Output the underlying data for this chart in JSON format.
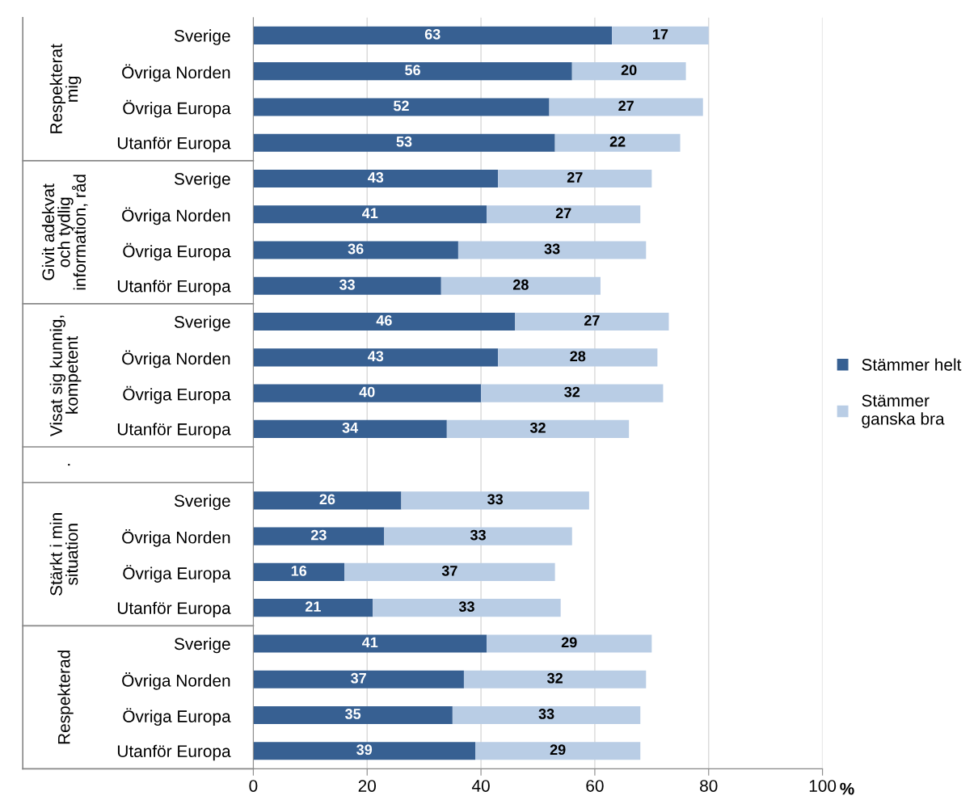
{
  "chart_data": {
    "type": "bar",
    "orientation": "horizontal",
    "stacked": true,
    "data_labels": true,
    "grid": "x",
    "legend": "right",
    "xlabel": "%",
    "categories": [
      "Sverige",
      "Övriga Norden",
      "Övriga Europa",
      "Utanför Europa",
      "Sverige",
      "Övriga Norden",
      "Övriga Europa",
      "Utanför Europa",
      "Sverige",
      "Övriga Norden",
      "Övriga Europa",
      "Utanför Europa",
      null,
      "Sverige",
      "Övriga Norden",
      "Övriga Europa",
      "Utanför Europa",
      "Sverige",
      "Övriga Norden",
      "Övriga Europa",
      "Utanför Europa"
    ],
    "annotations": [
      "Respekterat\nmig",
      "Givit adekvat\noch tydlig\ninformation, råd",
      "Visat sig kunnig,\nkompetent",
      ".",
      "Stärkt i min\nsituation",
      "Respekterad"
    ],
    "series": [
      {
        "name": "Stämmer helt",
        "color": "#376092",
        "values": [
          63,
          56,
          52,
          53,
          43,
          41,
          36,
          33,
          46,
          43,
          40,
          34,
          null,
          26,
          23,
          16,
          21,
          41,
          37,
          35,
          39
        ]
      },
      {
        "name": "Stämmer\nganska bra",
        "color": "#b9cde5",
        "values": [
          17,
          20,
          27,
          22,
          27,
          27,
          33,
          28,
          27,
          28,
          32,
          32,
          null,
          33,
          33,
          37,
          33,
          29,
          32,
          33,
          29
        ]
      }
    ],
    "xlim": [
      0,
      100
    ],
    "xticks": [
      0,
      20,
      40,
      60,
      80,
      100
    ]
  }
}
